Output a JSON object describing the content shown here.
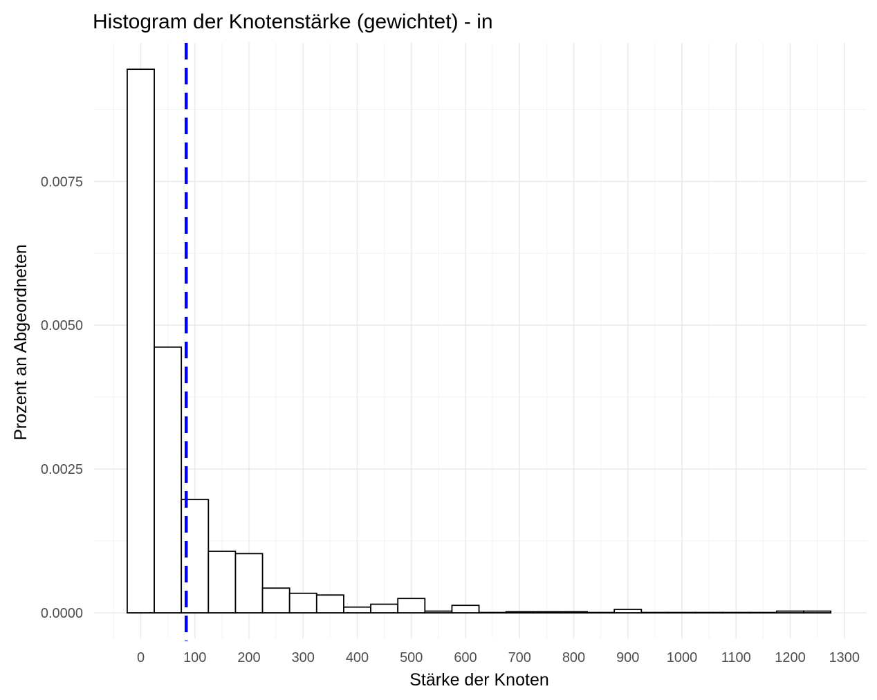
{
  "chart_data": {
    "type": "bar",
    "title": "Histogram der Knotenstärke (gewichtet) - in",
    "xlabel": "Stärke der Knoten",
    "ylabel": "Prozent an Abgeordneten",
    "xlim": [
      -50,
      1300
    ],
    "ylim": [
      -0.0005,
      0.0095
    ],
    "x_ticks": [
      0,
      100,
      200,
      300,
      400,
      500,
      600,
      700,
      800,
      900,
      1000,
      1100,
      1200,
      1300
    ],
    "x_tick_labels": [
      "0",
      "100",
      "200",
      "300",
      "400",
      "500",
      "600",
      "700",
      "800",
      "900",
      "1000",
      "1100",
      "1200",
      "1300"
    ],
    "y_ticks": [
      0,
      0.0025,
      0.005,
      0.0075
    ],
    "y_tick_labels": [
      "0.0000",
      "0.0025",
      "0.0050",
      "0.0075"
    ],
    "grid": true,
    "bin_width": 50,
    "bins": [
      {
        "x0": -25,
        "x1": 25,
        "value": 0.00945
      },
      {
        "x0": 25,
        "x1": 75,
        "value": 0.00462
      },
      {
        "x0": 75,
        "x1": 125,
        "value": 0.00197
      },
      {
        "x0": 125,
        "x1": 175,
        "value": 0.00107
      },
      {
        "x0": 175,
        "x1": 225,
        "value": 0.00103
      },
      {
        "x0": 225,
        "x1": 275,
        "value": 0.00043
      },
      {
        "x0": 275,
        "x1": 325,
        "value": 0.00034
      },
      {
        "x0": 325,
        "x1": 375,
        "value": 0.00031
      },
      {
        "x0": 375,
        "x1": 425,
        "value": 0.0001
      },
      {
        "x0": 425,
        "x1": 475,
        "value": 0.00015
      },
      {
        "x0": 475,
        "x1": 525,
        "value": 0.00025
      },
      {
        "x0": 525,
        "x1": 575,
        "value": 3e-05
      },
      {
        "x0": 575,
        "x1": 625,
        "value": 0.00013
      },
      {
        "x0": 625,
        "x1": 675,
        "value": 0.0
      },
      {
        "x0": 675,
        "x1": 725,
        "value": 2e-05
      },
      {
        "x0": 725,
        "x1": 775,
        "value": 2e-05
      },
      {
        "x0": 775,
        "x1": 825,
        "value": 2e-05
      },
      {
        "x0": 825,
        "x1": 875,
        "value": 0.0
      },
      {
        "x0": 875,
        "x1": 925,
        "value": 6e-05
      },
      {
        "x0": 925,
        "x1": 975,
        "value": 0.0
      },
      {
        "x0": 975,
        "x1": 1025,
        "value": 0.0
      },
      {
        "x0": 1025,
        "x1": 1075,
        "value": 0.0
      },
      {
        "x0": 1075,
        "x1": 1125,
        "value": 0.0
      },
      {
        "x0": 1125,
        "x1": 1175,
        "value": 0.0
      },
      {
        "x0": 1175,
        "x1": 1225,
        "value": 3e-05
      },
      {
        "x0": 1225,
        "x1": 1275,
        "value": 3e-05
      }
    ],
    "mean_line": {
      "x": 84,
      "color": "#0000ff",
      "style": "dashed"
    }
  }
}
